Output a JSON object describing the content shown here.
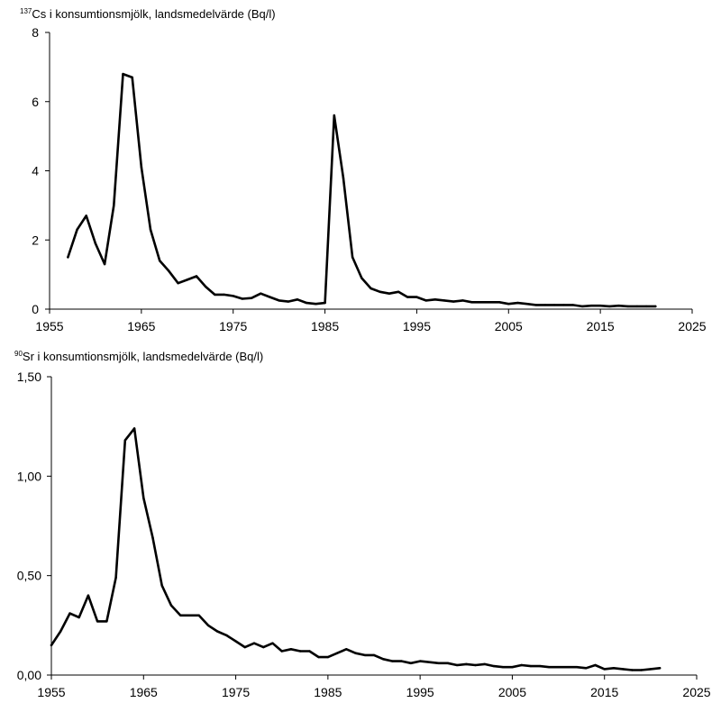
{
  "chart_data": [
    {
      "type": "line",
      "title_sup": "137",
      "title": "Cs i konsumtionsmjölk, landsmedelvärde (Bq/l)",
      "xlim": [
        1955,
        2025
      ],
      "ylim": [
        0,
        8
      ],
      "xticks": [
        "1955",
        "1965",
        "1975",
        "1985",
        "1995",
        "2005",
        "2015",
        "2025"
      ],
      "yticks": [
        "0",
        "2",
        "4",
        "6",
        "8"
      ],
      "series": [
        {
          "x": [
            1957,
            1958,
            1959,
            1960,
            1961,
            1962,
            1963,
            1964,
            1965,
            1966,
            1967,
            1968,
            1969,
            1970,
            1971,
            1972,
            1973,
            1974,
            1975,
            1976,
            1977,
            1978,
            1979,
            1980,
            1981,
            1982,
            1983,
            1984,
            1985,
            1986,
            1987,
            1988,
            1989,
            1990,
            1991,
            1992,
            1993,
            1994,
            1995,
            1996,
            1997,
            1998,
            1999,
            2000,
            2001,
            2002,
            2003,
            2004,
            2005,
            2006,
            2007,
            2008,
            2009,
            2010,
            2011,
            2012,
            2013,
            2014,
            2015,
            2016,
            2017,
            2018,
            2019,
            2020,
            2021
          ],
          "y": [
            1.5,
            2.3,
            2.7,
            1.9,
            1.3,
            3.0,
            6.8,
            6.7,
            4.1,
            2.3,
            1.4,
            1.1,
            0.75,
            0.85,
            0.95,
            0.65,
            0.42,
            0.42,
            0.38,
            0.3,
            0.32,
            0.45,
            0.35,
            0.25,
            0.22,
            0.28,
            0.18,
            0.15,
            0.18,
            5.6,
            3.8,
            1.5,
            0.9,
            0.6,
            0.5,
            0.45,
            0.5,
            0.35,
            0.35,
            0.25,
            0.28,
            0.25,
            0.22,
            0.25,
            0.2,
            0.2,
            0.2,
            0.2,
            0.15,
            0.18,
            0.15,
            0.12,
            0.12,
            0.12,
            0.12,
            0.12,
            0.08,
            0.1,
            0.1,
            0.08,
            0.1,
            0.08,
            0.08,
            0.08,
            0.08
          ]
        }
      ]
    },
    {
      "type": "line",
      "title_sup": "90",
      "title": "Sr i konsumtionsmjölk, landsmedelvärde (Bq/l)",
      "xlim": [
        1955,
        2025
      ],
      "ylim": [
        0,
        1.5
      ],
      "xticks": [
        "1955",
        "1965",
        "1975",
        "1985",
        "1995",
        "2005",
        "2015",
        "2025"
      ],
      "yticks": [
        "0,00",
        "0,50",
        "1,00",
        "1,50"
      ],
      "series": [
        {
          "x": [
            1955,
            1956,
            1957,
            1958,
            1959,
            1960,
            1961,
            1962,
            1963,
            1964,
            1965,
            1966,
            1967,
            1968,
            1969,
            1970,
            1971,
            1972,
            1973,
            1974,
            1975,
            1976,
            1977,
            1978,
            1979,
            1980,
            1981,
            1982,
            1983,
            1984,
            1985,
            1986,
            1987,
            1988,
            1989,
            1990,
            1991,
            1992,
            1993,
            1994,
            1995,
            1996,
            1997,
            1998,
            1999,
            2000,
            2001,
            2002,
            2003,
            2004,
            2005,
            2006,
            2007,
            2008,
            2009,
            2010,
            2011,
            2012,
            2013,
            2014,
            2015,
            2016,
            2017,
            2018,
            2019,
            2020,
            2021
          ],
          "y": [
            0.15,
            0.22,
            0.31,
            0.29,
            0.4,
            0.27,
            0.27,
            0.49,
            1.18,
            1.24,
            0.89,
            0.69,
            0.45,
            0.35,
            0.3,
            0.3,
            0.3,
            0.25,
            0.22,
            0.2,
            0.17,
            0.14,
            0.16,
            0.14,
            0.16,
            0.12,
            0.13,
            0.12,
            0.12,
            0.09,
            0.09,
            0.11,
            0.13,
            0.11,
            0.1,
            0.1,
            0.08,
            0.07,
            0.07,
            0.06,
            0.07,
            0.065,
            0.06,
            0.06,
            0.05,
            0.055,
            0.05,
            0.055,
            0.045,
            0.04,
            0.04,
            0.05,
            0.045,
            0.045,
            0.04,
            0.04,
            0.04,
            0.04,
            0.035,
            0.05,
            0.03,
            0.035,
            0.03,
            0.025,
            0.025,
            0.03,
            0.035
          ]
        }
      ]
    }
  ]
}
